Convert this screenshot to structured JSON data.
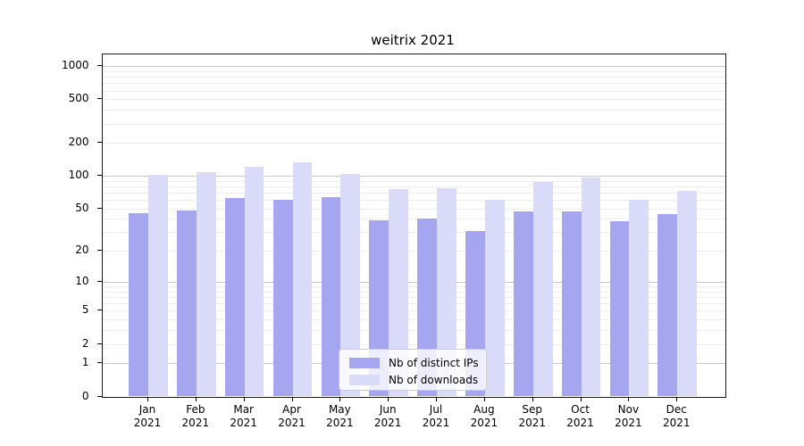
{
  "chart_data": {
    "type": "bar",
    "title": "weitrix 2021",
    "categories": [
      "Jan 2021",
      "Feb 2021",
      "Mar 2021",
      "Apr 2021",
      "May 2021",
      "Jun 2021",
      "Jul 2021",
      "Aug 2021",
      "Sep 2021",
      "Oct 2021",
      "Nov 2021",
      "Dec 2021"
    ],
    "series": [
      {
        "name": "Nb of distinct IPs",
        "color": "#a6a6f0",
        "values": [
          45,
          48,
          63,
          60,
          64,
          39,
          40,
          31,
          47,
          47,
          38,
          44
        ]
      },
      {
        "name": "Nb of downloads",
        "color": "#dadaf9",
        "values": [
          103,
          108,
          121,
          133,
          105,
          76,
          77,
          60,
          88,
          96,
          60,
          73
        ]
      }
    ],
    "xlabel": "",
    "ylabel": "",
    "yscale": "log1p",
    "ylim": [
      0,
      1280
    ],
    "yticks": [
      0,
      1,
      2,
      5,
      10,
      20,
      50,
      100,
      200,
      500,
      1000
    ],
    "grid": "horizontal",
    "legend_position": "lower center"
  }
}
